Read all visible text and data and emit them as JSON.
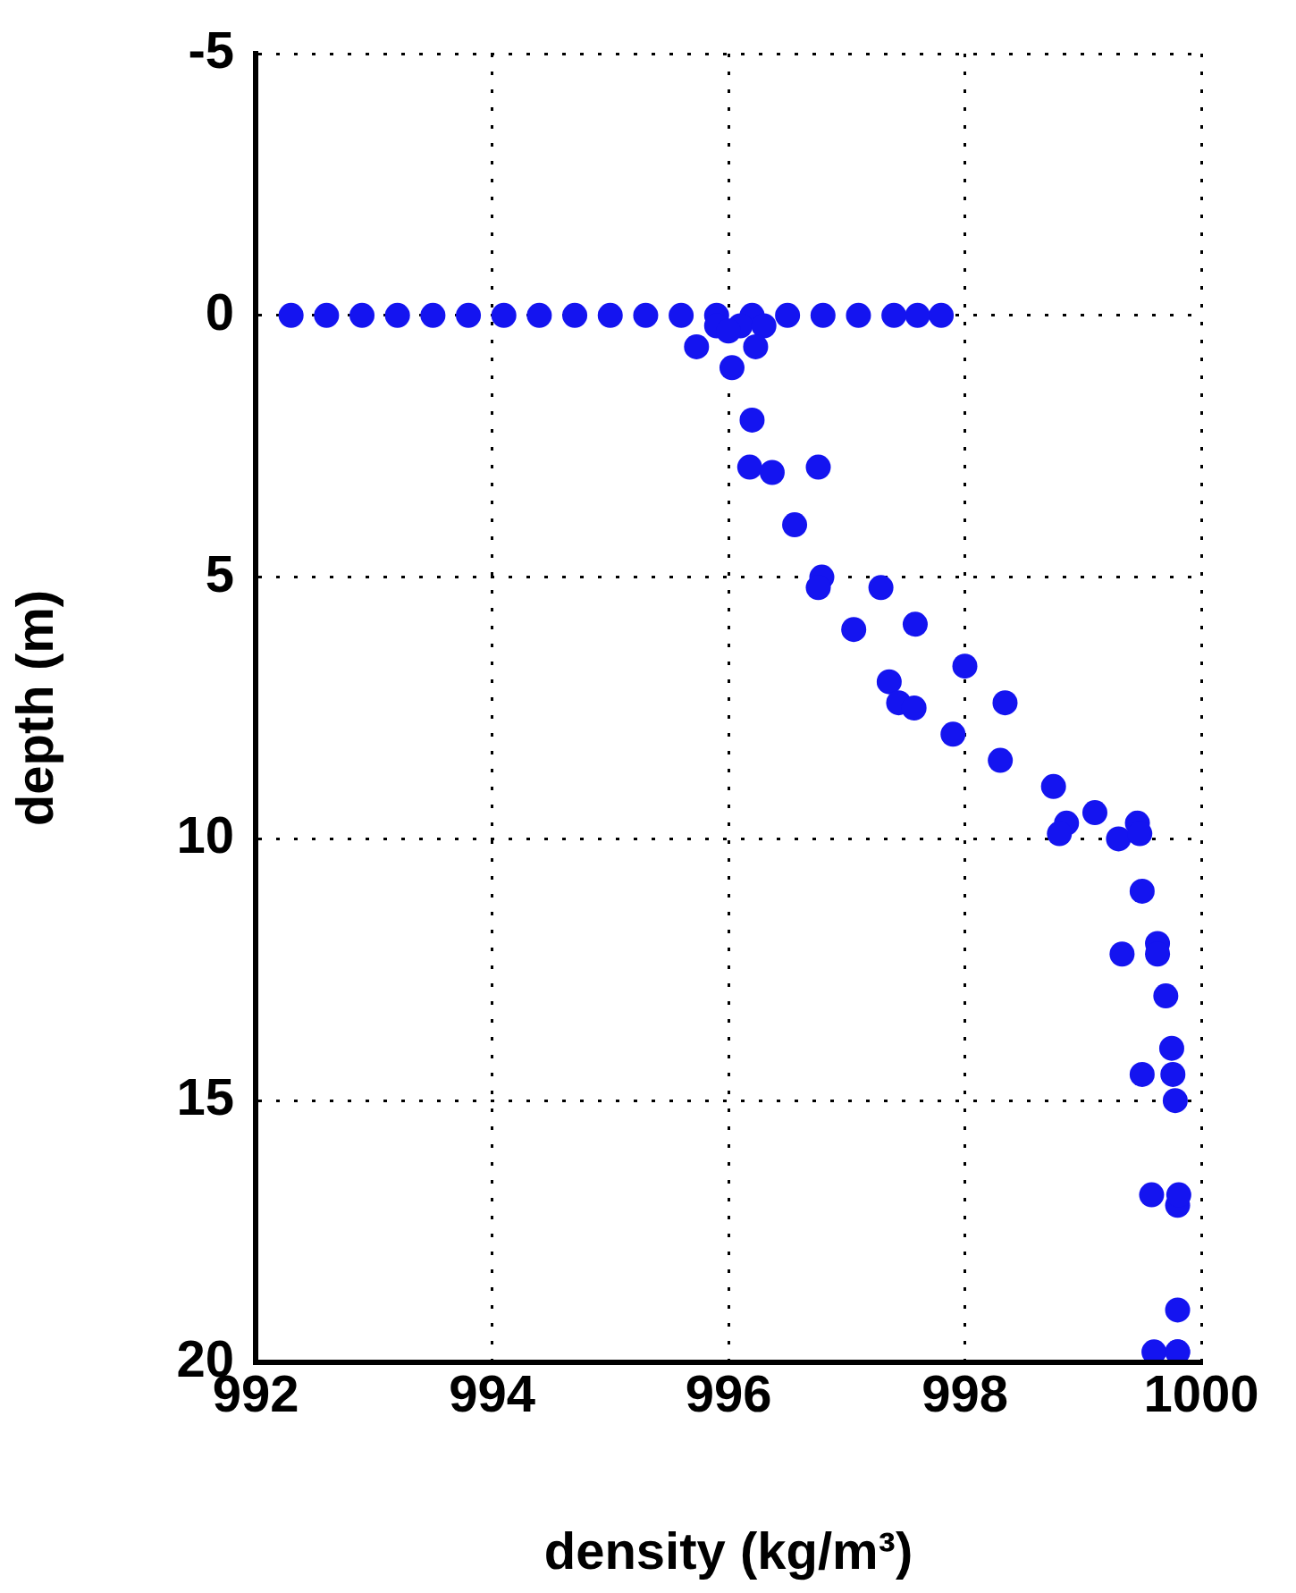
{
  "chart_data": {
    "type": "scatter",
    "xlabel": "density (kg/m³)",
    "ylabel": "depth (m)",
    "xlim": [
      992,
      1000
    ],
    "xticks": [
      992,
      994,
      996,
      998,
      1000
    ],
    "ylim": [
      20,
      -5
    ],
    "yticks": [
      -5,
      0,
      5,
      10,
      15,
      20
    ],
    "grid": true,
    "marker": "circle",
    "series": [
      {
        "color": "#1414f0",
        "x": [
          992.3,
          992.6,
          992.9,
          993.2,
          993.5,
          993.8,
          994.1,
          994.4,
          994.7,
          995.0,
          995.3,
          995.6,
          995.9,
          996.2,
          996.5,
          996.8,
          997.1,
          997.4,
          997.6,
          997.8,
          995.9,
          996.1,
          996.3,
          996.0,
          995.73,
          996.23,
          996.03,
          996.2,
          996.18,
          996.76,
          996.37,
          996.56,
          996.79,
          996.76,
          997.29,
          997.06,
          997.58,
          998.0,
          997.36,
          997.44,
          998.34,
          997.57,
          997.9,
          998.3,
          998.75,
          998.86,
          999.46,
          999.1,
          999.3,
          998.8,
          999.48,
          999.5,
          999.63,
          999.33,
          999.63,
          999.7,
          999.75,
          999.5,
          999.76,
          999.78,
          999.8,
          999.58,
          999.81,
          999.8,
          999.8,
          999.6,
          999.8
        ],
        "values": [
          0,
          0,
          0,
          0,
          0,
          0,
          0,
          0,
          0,
          0,
          0,
          0,
          0,
          0,
          0,
          0,
          0,
          0,
          0,
          0,
          0.2,
          0.2,
          0.2,
          0.3,
          0.6,
          0.6,
          1,
          2,
          2.9,
          2.9,
          3,
          4,
          5,
          5.2,
          5.2,
          6,
          5.9,
          6.7,
          7,
          7.4,
          7.4,
          7.5,
          8,
          8.5,
          9,
          9.7,
          9.7,
          9.5,
          10,
          9.9,
          9.9,
          11,
          12,
          12.2,
          12.2,
          13,
          14,
          14.5,
          14.5,
          15,
          17,
          16.8,
          16.8,
          19,
          19.8,
          19.8,
          19.8
        ]
      }
    ]
  }
}
